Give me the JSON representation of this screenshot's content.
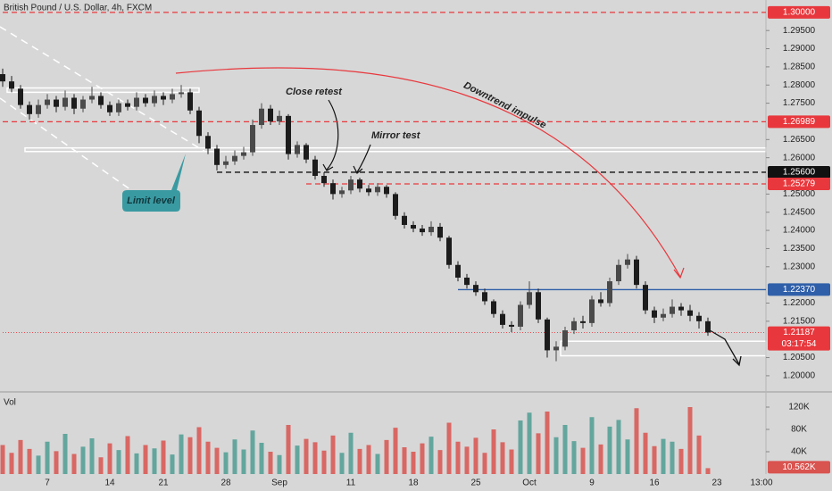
{
  "chart_data": {
    "type": "candlestick",
    "title": "British Pound / U.S. Dollar, 4h, FXCM",
    "categories": [
      null,
      null,
      null,
      null,
      null,
      "7",
      null,
      null,
      null,
      null,
      null,
      null,
      "14",
      null,
      null,
      null,
      null,
      null,
      "21",
      null,
      null,
      null,
      null,
      null,
      null,
      "28",
      null,
      null,
      null,
      null,
      null,
      "Sep",
      null,
      null,
      null,
      null,
      null,
      null,
      null,
      "11",
      null,
      null,
      null,
      null,
      null,
      null,
      "18",
      null,
      null,
      null,
      null,
      null,
      null,
      "25",
      null,
      null,
      null,
      null,
      null,
      "Oct",
      null,
      null,
      null,
      null,
      null,
      null,
      "9",
      null,
      null,
      null,
      null,
      null,
      null,
      "16",
      null,
      null,
      null,
      null,
      null,
      null,
      "23",
      null,
      null,
      null,
      null,
      "13:00"
    ],
    "candles": [
      [
        1.283,
        1.2845,
        1.2795,
        1.281
      ],
      [
        1.281,
        1.2825,
        1.278,
        1.279
      ],
      [
        1.279,
        1.28,
        1.2735,
        1.2745
      ],
      [
        1.2745,
        1.2755,
        1.2705,
        1.272
      ],
      [
        1.272,
        1.276,
        1.271,
        1.2745
      ],
      [
        1.2745,
        1.2775,
        1.2735,
        1.276
      ],
      [
        1.276,
        1.277,
        1.2725,
        1.274
      ],
      [
        1.274,
        1.2785,
        1.273,
        1.2765
      ],
      [
        1.2765,
        1.2775,
        1.272,
        1.2735
      ],
      [
        1.2735,
        1.277,
        1.2725,
        1.276
      ],
      [
        1.276,
        1.2795,
        1.275,
        1.277
      ],
      [
        1.277,
        1.278,
        1.2735,
        1.2745
      ],
      [
        1.2745,
        1.2755,
        1.2715,
        1.2725
      ],
      [
        1.2725,
        1.276,
        1.2715,
        1.275
      ],
      [
        1.275,
        1.276,
        1.273,
        1.274
      ],
      [
        1.274,
        1.278,
        1.273,
        1.2765
      ],
      [
        1.2765,
        1.2775,
        1.274,
        1.275
      ],
      [
        1.275,
        1.2785,
        1.274,
        1.277
      ],
      [
        1.277,
        1.278,
        1.2745,
        1.276
      ],
      [
        1.276,
        1.279,
        1.275,
        1.2775
      ],
      [
        1.2775,
        1.28,
        1.2765,
        1.278
      ],
      [
        1.278,
        1.279,
        1.272,
        1.273
      ],
      [
        1.273,
        1.274,
        1.264,
        1.266
      ],
      [
        1.266,
        1.267,
        1.261,
        1.2625
      ],
      [
        1.2625,
        1.2635,
        1.2565,
        1.258
      ],
      [
        1.258,
        1.2605,
        1.257,
        1.259
      ],
      [
        1.259,
        1.262,
        1.258,
        1.2605
      ],
      [
        1.2605,
        1.263,
        1.2595,
        1.2615
      ],
      [
        1.2615,
        1.2705,
        1.2605,
        1.269
      ],
      [
        1.269,
        1.275,
        1.268,
        1.2735
      ],
      [
        1.2735,
        1.2745,
        1.269,
        1.27
      ],
      [
        1.27,
        1.273,
        1.269,
        1.2715
      ],
      [
        1.2715,
        1.272,
        1.2595,
        1.261
      ],
      [
        1.261,
        1.2645,
        1.26,
        1.2635
      ],
      [
        1.2635,
        1.264,
        1.2585,
        1.2595
      ],
      [
        1.2595,
        1.2605,
        1.254,
        1.255
      ],
      [
        1.255,
        1.256,
        1.252,
        1.253
      ],
      [
        1.253,
        1.254,
        1.2485,
        1.25
      ],
      [
        1.25,
        1.252,
        1.249,
        1.251
      ],
      [
        1.251,
        1.255,
        1.25,
        1.254
      ],
      [
        1.254,
        1.2545,
        1.2505,
        1.2515
      ],
      [
        1.2515,
        1.2525,
        1.2495,
        1.2505
      ],
      [
        1.2505,
        1.253,
        1.2495,
        1.252
      ],
      [
        1.252,
        1.2525,
        1.249,
        1.25
      ],
      [
        1.25,
        1.2505,
        1.243,
        1.244
      ],
      [
        1.244,
        1.245,
        1.2405,
        1.2415
      ],
      [
        1.2415,
        1.2425,
        1.2395,
        1.2405
      ],
      [
        1.2405,
        1.2415,
        1.2385,
        1.2395
      ],
      [
        1.2395,
        1.2425,
        1.2385,
        1.241
      ],
      [
        1.241,
        1.242,
        1.237,
        1.238
      ],
      [
        1.238,
        1.2385,
        1.2295,
        1.2305
      ],
      [
        1.2305,
        1.2315,
        1.226,
        1.227
      ],
      [
        1.227,
        1.228,
        1.224,
        1.225
      ],
      [
        1.225,
        1.226,
        1.222,
        1.223
      ],
      [
        1.223,
        1.224,
        1.2195,
        1.2205
      ],
      [
        1.2205,
        1.221,
        1.216,
        1.217
      ],
      [
        1.217,
        1.218,
        1.213,
        1.214
      ],
      [
        1.214,
        1.215,
        1.212,
        1.2135
      ],
      [
        1.2135,
        1.2205,
        1.2125,
        1.2195
      ],
      [
        1.2195,
        1.226,
        1.2185,
        1.223
      ],
      [
        1.223,
        1.224,
        1.2145,
        1.2155
      ],
      [
        1.2155,
        1.216,
        1.205,
        1.207
      ],
      [
        1.207,
        1.2095,
        1.204,
        1.208
      ],
      [
        1.208,
        1.2135,
        1.207,
        1.2125
      ],
      [
        1.2125,
        1.216,
        1.2115,
        1.215
      ],
      [
        1.215,
        1.2165,
        1.213,
        1.2145
      ],
      [
        1.2145,
        1.222,
        1.2135,
        1.221
      ],
      [
        1.221,
        1.223,
        1.219,
        1.22
      ],
      [
        1.22,
        1.227,
        1.219,
        1.226
      ],
      [
        1.226,
        1.232,
        1.225,
        1.2305
      ],
      [
        1.2305,
        1.2335,
        1.2295,
        1.232
      ],
      [
        1.232,
        1.233,
        1.224,
        1.225
      ],
      [
        1.225,
        1.226,
        1.217,
        1.218
      ],
      [
        1.218,
        1.219,
        1.2145,
        1.216
      ],
      [
        1.216,
        1.2185,
        1.215,
        1.217
      ],
      [
        1.217,
        1.221,
        1.216,
        1.219
      ],
      [
        1.219,
        1.22,
        1.2165,
        1.218
      ],
      [
        1.218,
        1.2195,
        1.215,
        1.2165
      ],
      [
        1.2165,
        1.2175,
        1.213,
        1.215
      ],
      [
        1.215,
        1.216,
        1.211,
        1.2119
      ],
      null,
      null,
      null,
      null,
      null,
      null
    ],
    "up_color": "#4a4a4a",
    "down_color": "#1c1c1c",
    "ylim": [
      1.1958,
      1.3034
    ],
    "yticks": [
      {
        "value": 1.295,
        "label": "1.29500"
      },
      {
        "value": 1.29,
        "label": "1.29000"
      },
      {
        "value": 1.285,
        "label": "1.28500"
      },
      {
        "value": 1.28,
        "label": "1.28000"
      },
      {
        "value": 1.275,
        "label": "1.27500"
      },
      {
        "value": 1.265,
        "label": "1.26500"
      },
      {
        "value": 1.26,
        "label": "1.26000"
      },
      {
        "value": 1.25,
        "label": "1.25000"
      },
      {
        "value": 1.245,
        "label": "1.24500"
      },
      {
        "value": 1.24,
        "label": "1.24000"
      },
      {
        "value": 1.235,
        "label": "1.23500"
      },
      {
        "value": 1.23,
        "label": "1.23000"
      },
      {
        "value": 1.22,
        "label": "1.22000"
      },
      {
        "value": 1.215,
        "label": "1.21500"
      },
      {
        "value": 1.205,
        "label": "1.20500"
      },
      {
        "value": 1.2,
        "label": "1.20000"
      }
    ],
    "levels": [
      {
        "value": 1.3,
        "label": "1.30000",
        "color": "#e8383d",
        "style": "dashed",
        "start": 0
      },
      {
        "value": 1.26989,
        "label": "1.26989",
        "color": "#e8383d",
        "style": "dashed",
        "start": 0
      },
      {
        "value": 1.256,
        "label": "1.25600",
        "color": "#111111",
        "style": "dashed",
        "start": 24
      },
      {
        "value": 1.25279,
        "label": "1.25279",
        "color": "#e8383d",
        "style": "dashed",
        "start": 34
      },
      {
        "value": 1.2237,
        "label": "1.22370",
        "color": "#2f5fa8",
        "style": "solid",
        "start": 51
      },
      {
        "value": 1.21187,
        "label": "1.21187",
        "color": "#e8383d",
        "style": "dotted",
        "start": 0
      }
    ],
    "countdown": "03:17:54",
    "zones": [
      {
        "from": 1.278,
        "to": 1.2792,
        "start": 1,
        "end": 22
      },
      {
        "from": 1.2617,
        "to": 1.2627,
        "start": 3,
        "end": 86
      },
      {
        "from": 1.2055,
        "to": 1.2095,
        "start": 63,
        "end": 86
      }
    ],
    "annotations": [
      "Close retest",
      "Mirror test",
      "Downtrend impulse",
      "Limit level"
    ],
    "volume": {
      "name": "Vol",
      "values": [
        52000,
        38000,
        61000,
        45000,
        33000,
        58000,
        41000,
        72000,
        36000,
        49000,
        64000,
        30000,
        55000,
        43000,
        68000,
        37000,
        52000,
        46000,
        60000,
        35000,
        71000,
        66000,
        84000,
        58000,
        47000,
        39000,
        62000,
        44000,
        78000,
        56000,
        40000,
        34000,
        88000,
        51000,
        63000,
        57000,
        42000,
        69000,
        38000,
        74000,
        45000,
        52000,
        36000,
        61000,
        83000,
        48000,
        40000,
        55000,
        67000,
        43000,
        92000,
        58000,
        49000,
        65000,
        38000,
        80000,
        57000,
        44000,
        96000,
        110000,
        73000,
        112000,
        66000,
        88000,
        59000,
        47000,
        102000,
        53000,
        85000,
        97000,
        62000,
        118000,
        74000,
        50000,
        63000,
        58000,
        45000,
        120000,
        69000,
        10562,
        null,
        null,
        null,
        null,
        null,
        null
      ],
      "up_color": "#4f9e93",
      "down_color": "#d9534f",
      "ylim": [
        0,
        145600
      ],
      "yticks": [
        {
          "value": 120000,
          "label": "120K"
        },
        {
          "value": 80000,
          "label": "80K"
        },
        {
          "value": 40000,
          "label": "40K"
        }
      ],
      "tag": {
        "value": 10562,
        "label": "10.562K"
      }
    }
  }
}
